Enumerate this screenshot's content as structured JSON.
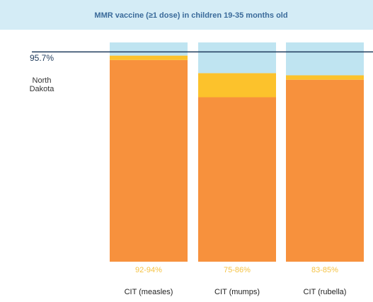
{
  "chart_data": {
    "type": "stacked-bar",
    "title": "MMR vaccine (≥1 dose) in children 19-35 months old",
    "categories": [
      "CIT (measles)",
      "CIT (mumps)",
      "CIT (rubella)"
    ],
    "series": [
      {
        "color": "#f7913d",
        "values": [
          92,
          75,
          83
        ]
      },
      {
        "color": "#fcc22c",
        "values": [
          2,
          11,
          2
        ]
      },
      {
        "color": "#bfe4f1",
        "values": [
          6,
          14,
          15
        ]
      }
    ],
    "range_labels": [
      "92-94%",
      "75-86%",
      "83-85%"
    ],
    "range_label_color": "#f5c242",
    "reference_line": {
      "value": 95.7,
      "label": "95.7%",
      "name": "North Dakota",
      "color": "#1f3b5c"
    },
    "ylim": [
      0,
      100
    ]
  }
}
